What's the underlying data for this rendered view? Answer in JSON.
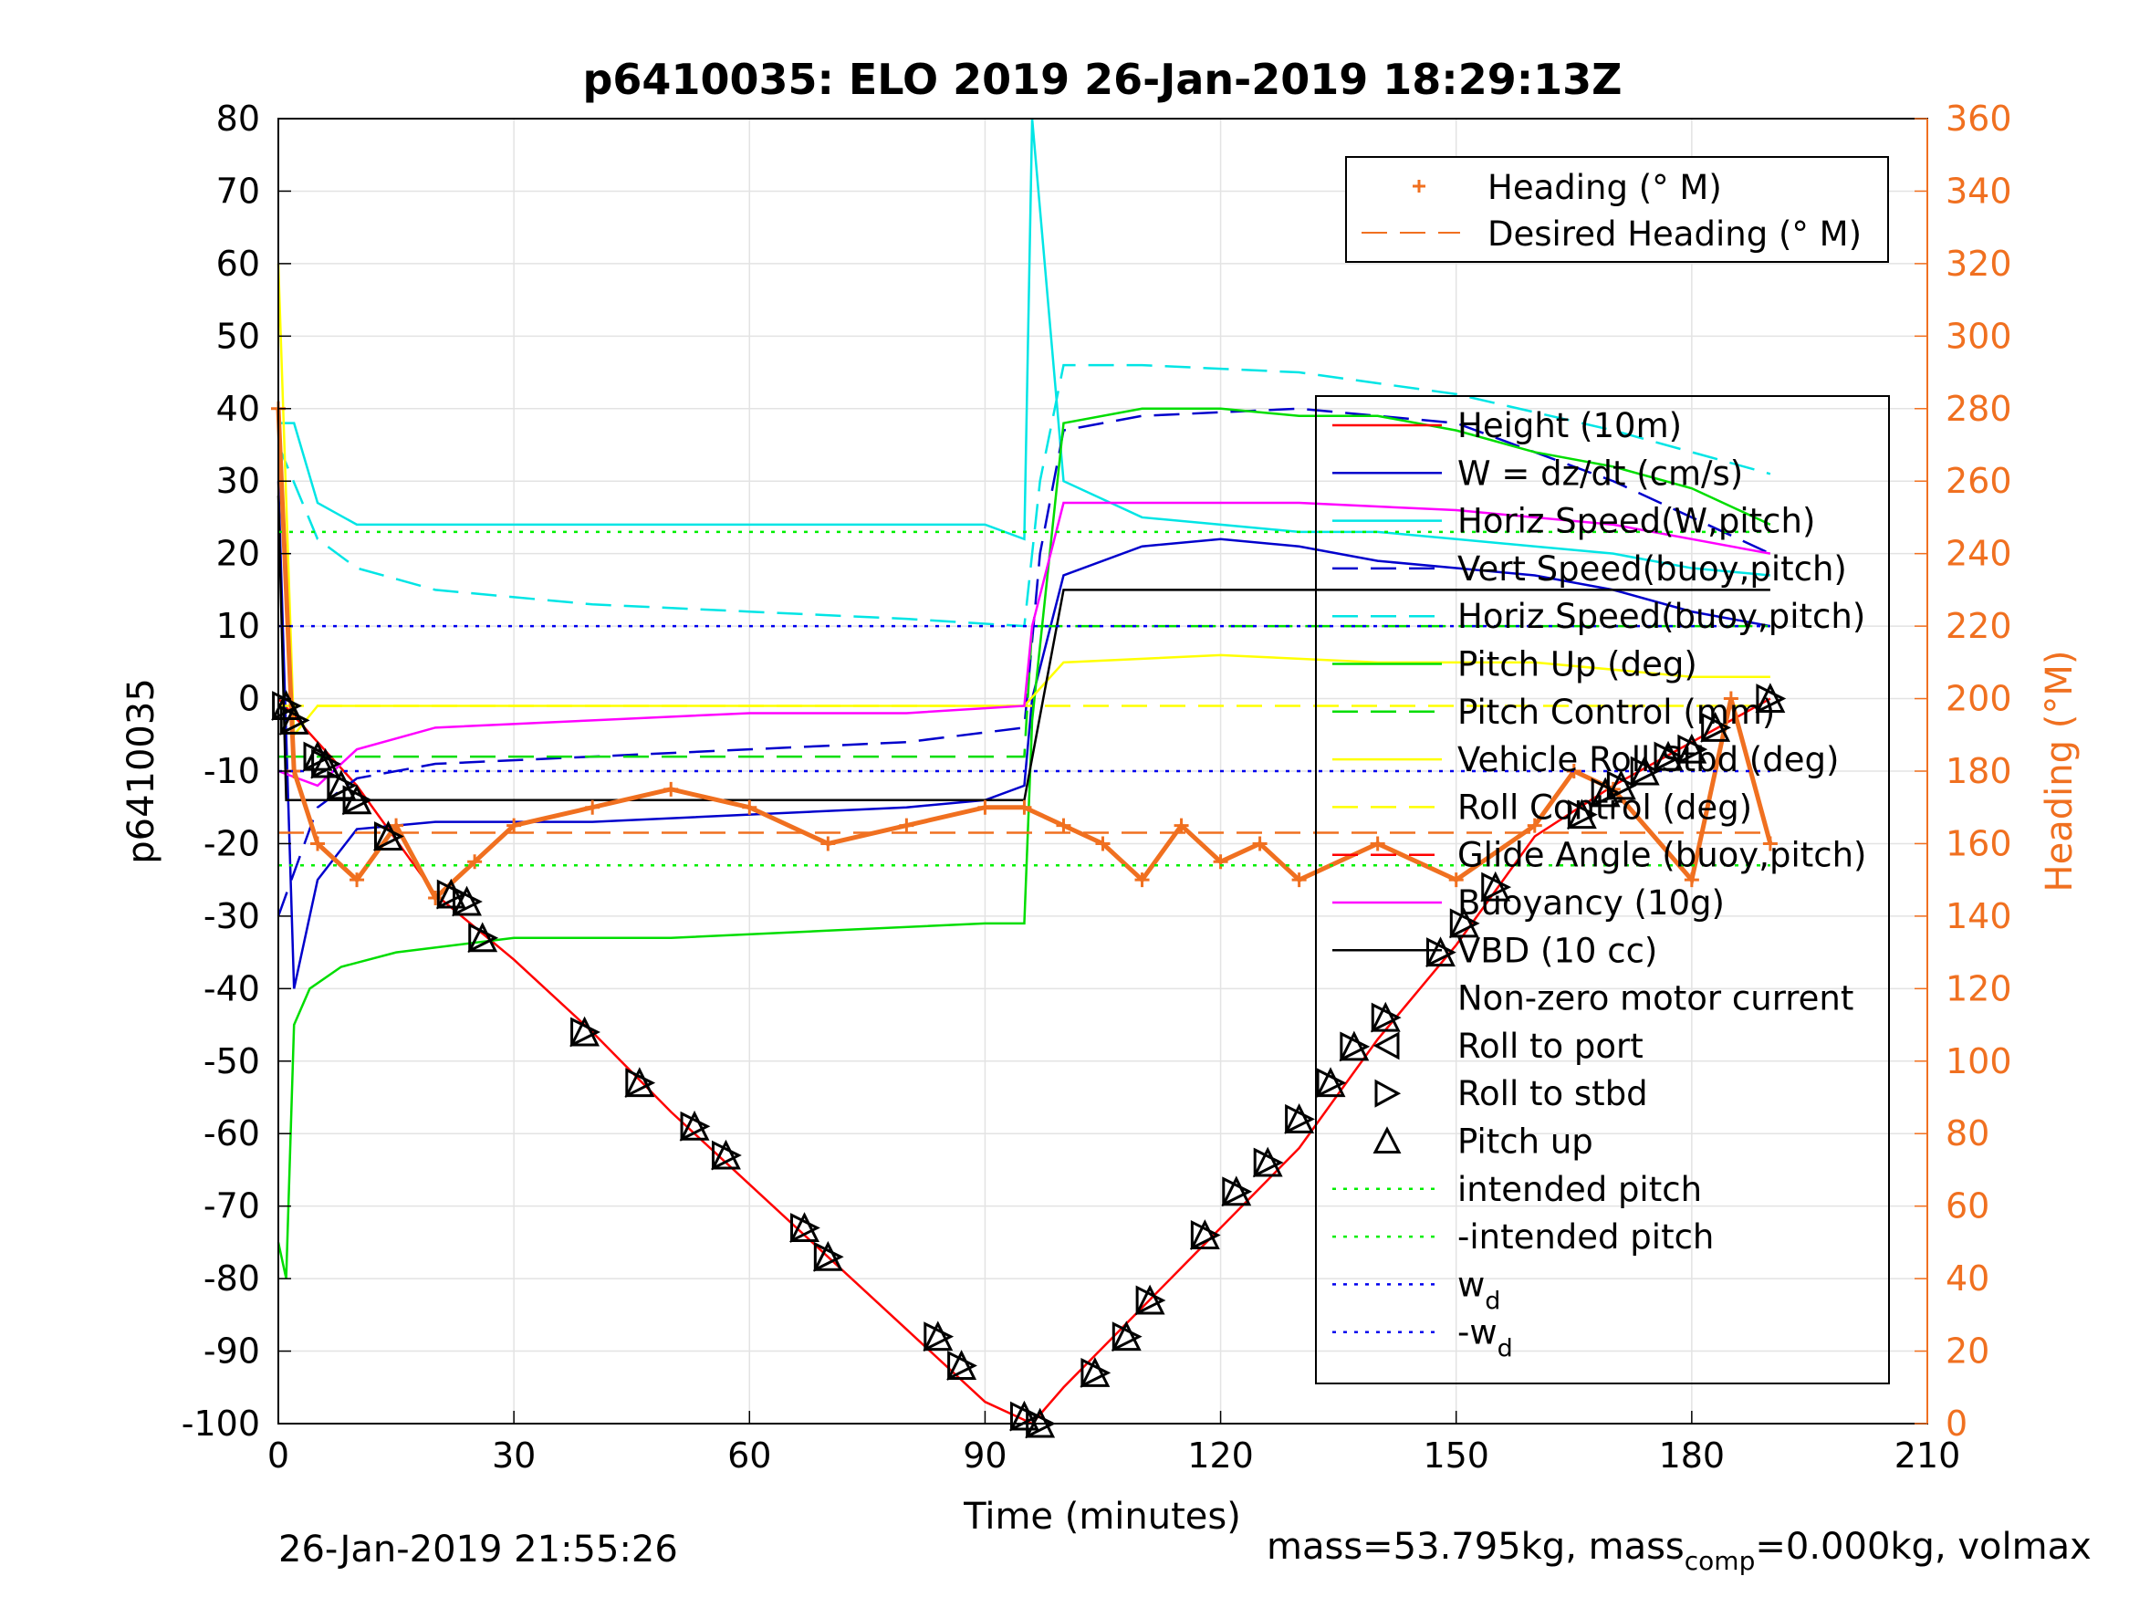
{
  "chart_data": {
    "type": "line",
    "title": "p6410035: ELO 2019 26-Jan-2019 18:29:13Z",
    "xlabel": "Time (minutes)",
    "ylabel": "p6410035",
    "y2label": "Heading (°M)",
    "xlim": [
      0,
      210
    ],
    "ylim": [
      -100,
      80
    ],
    "y2lim": [
      0,
      360
    ],
    "xticks": [
      "0",
      "30",
      "60",
      "90",
      "120",
      "150",
      "180",
      "210"
    ],
    "yticks": [
      "80",
      "70",
      "60",
      "50",
      "40",
      "30",
      "20",
      "10",
      "0",
      "-10",
      "-20",
      "-30",
      "-40",
      "-50",
      "-60",
      "-70",
      "-80",
      "-90",
      "-100"
    ],
    "y2ticks": [
      "360",
      "340",
      "320",
      "300",
      "280",
      "260",
      "240",
      "220",
      "200",
      "180",
      "160",
      "140",
      "120",
      "100",
      "80",
      "60",
      "40",
      "20",
      "0"
    ],
    "grid": true,
    "colors": {
      "axis2": "#f07020",
      "heading": "#f07020"
    },
    "legend_heading": {
      "placement": "top-right",
      "entries": [
        "Heading (° M)",
        "Desired Heading (° M)"
      ]
    },
    "legend_main": {
      "placement": "right",
      "entries": [
        {
          "label": "Height (10m)",
          "color": "#ff0000",
          "style": "solid"
        },
        {
          "label": "W = dz/dt (cm/s)",
          "color": "#0000cc",
          "style": "solid"
        },
        {
          "label": "Horiz Speed(W,pitch)",
          "color": "#00e5e5",
          "style": "solid"
        },
        {
          "label": "Vert Speed(buoy,pitch)",
          "color": "#0000cc",
          "style": "dashed"
        },
        {
          "label": "Horiz Speed(buoy,pitch)",
          "color": "#00e5e5",
          "style": "dashed"
        },
        {
          "label": "Pitch Up (deg)",
          "color": "#00dd00",
          "style": "solid"
        },
        {
          "label": "Pitch Control (mm)",
          "color": "#00dd00",
          "style": "dashed"
        },
        {
          "label": "Vehicle Roll Stbd (deg)",
          "color": "#ffff00",
          "style": "solid"
        },
        {
          "label": "Roll Control (deg)",
          "color": "#ffff00",
          "style": "dashed"
        },
        {
          "label": "Glide Angle (buoy,pitch)",
          "color": "#ff0000",
          "style": "dashed"
        },
        {
          "label": "Buoyancy (10g)",
          "color": "#ff00ff",
          "style": "solid"
        },
        {
          "label": "VBD (10 cc)",
          "color": "#000000",
          "style": "solid"
        },
        {
          "label": "Non-zero motor current",
          "color": "#000000",
          "style": "none"
        },
        {
          "label": "Roll to port",
          "color": "#000000",
          "style": "marker-left"
        },
        {
          "label": "Roll to stbd",
          "color": "#000000",
          "style": "marker-right"
        },
        {
          "label": "Pitch up",
          "color": "#000000",
          "style": "marker-up"
        },
        {
          "label": "intended pitch",
          "color": "#00ee00",
          "style": "dotted"
        },
        {
          "label": "-intended pitch",
          "color": "#00ee00",
          "style": "dotted"
        },
        {
          "label": "w",
          "sub": "d",
          "color": "#0000ee",
          "style": "dotted"
        },
        {
          "label": "-w",
          "sub": "d",
          "color": "#0000ee",
          "style": "dotted"
        }
      ]
    },
    "series": [
      {
        "name": "Height (10m)",
        "x": [
          0,
          10,
          20,
          30,
          40,
          50,
          60,
          70,
          80,
          90,
          96,
          100,
          110,
          120,
          130,
          140,
          150,
          160,
          170,
          180,
          190
        ],
        "y": [
          0,
          -12,
          -27,
          -36,
          -46,
          -57,
          -67,
          -77,
          -87,
          -97,
          -100,
          -95,
          -84,
          -73,
          -62,
          -47,
          -34,
          -19,
          -12,
          -6,
          0
        ]
      },
      {
        "name": "W = dz/dt (cm/s)",
        "x": [
          0,
          2,
          5,
          10,
          20,
          40,
          60,
          80,
          90,
          95,
          96,
          100,
          110,
          120,
          130,
          140,
          150,
          160,
          170,
          180,
          190
        ],
        "y": [
          30,
          -40,
          -25,
          -18,
          -17,
          -17,
          -16,
          -15,
          -14,
          -12,
          0,
          17,
          21,
          22,
          21,
          19,
          18,
          17,
          15,
          12,
          10
        ]
      },
      {
        "name": "Horiz Speed(W,pitch)",
        "x": [
          0,
          2,
          5,
          10,
          20,
          40,
          60,
          80,
          90,
          95,
          96,
          100,
          110,
          120,
          130,
          140,
          150,
          160,
          170,
          180,
          190
        ],
        "y": [
          38,
          38,
          27,
          24,
          24,
          24,
          24,
          24,
          24,
          22,
          80,
          30,
          25,
          24,
          23,
          23,
          22,
          21,
          20,
          18,
          17
        ]
      },
      {
        "name": "Vert Speed(buoy,pitch)",
        "x": [
          0,
          5,
          10,
          20,
          40,
          60,
          80,
          95,
          97,
          100,
          110,
          130,
          150,
          170,
          190
        ],
        "y": [
          -30,
          -15,
          -11,
          -9,
          -8,
          -7,
          -6,
          -4,
          20,
          37,
          39,
          40,
          38,
          30,
          20
        ]
      },
      {
        "name": "Horiz Speed(buoy,pitch)",
        "x": [
          0,
          5,
          10,
          20,
          40,
          60,
          80,
          95,
          97,
          100,
          110,
          130,
          150,
          170,
          190
        ],
        "y": [
          35,
          22,
          18,
          15,
          13,
          12,
          11,
          10,
          30,
          46,
          46,
          45,
          42,
          37,
          31
        ]
      },
      {
        "name": "Pitch Up (deg)",
        "x": [
          0,
          1,
          2,
          4,
          8,
          15,
          30,
          50,
          70,
          90,
          95,
          96,
          100,
          110,
          120,
          130,
          140,
          150,
          160,
          170,
          180,
          190
        ],
        "y": [
          -75,
          -80,
          -45,
          -40,
          -37,
          -35,
          -33,
          -33,
          -32,
          -31,
          -31,
          -3,
          38,
          40,
          40,
          39,
          39,
          37,
          34,
          32,
          29,
          24
        ]
      },
      {
        "name": "Pitch Control (mm)",
        "x": [
          0,
          95,
          96,
          190
        ],
        "y": [
          -8,
          -8,
          10,
          10
        ]
      },
      {
        "name": "Vehicle Roll Stbd (deg)",
        "x": [
          0,
          2,
          5,
          10,
          20,
          40,
          60,
          80,
          95,
          100,
          120,
          140,
          160,
          180,
          190
        ],
        "y": [
          60,
          -5,
          -1,
          -1,
          -1,
          -1,
          -1,
          -1,
          -1,
          5,
          6,
          5,
          5,
          3,
          3
        ]
      },
      {
        "name": "Roll Control (deg)",
        "x": [
          0,
          190
        ],
        "y": [
          -1,
          -1
        ]
      },
      {
        "name": "Buoyancy (10g)",
        "x": [
          0,
          5,
          10,
          20,
          40,
          60,
          80,
          95,
          96,
          100,
          110,
          130,
          150,
          170,
          190
        ],
        "y": [
          -10,
          -12,
          -7,
          -4,
          -3,
          -2,
          -2,
          -1,
          10,
          27,
          27,
          27,
          26,
          24,
          20
        ]
      },
      {
        "name": "VBD (10 cc)",
        "x": [
          0,
          1,
          5,
          10,
          40,
          95,
          100,
          190
        ],
        "y": [
          28,
          -14,
          -14,
          -14,
          -14,
          -14,
          15,
          15
        ]
      },
      {
        "name": "Heading (° M)",
        "axis": "y2",
        "x": [
          0,
          2,
          5,
          10,
          15,
          20,
          25,
          30,
          40,
          50,
          60,
          70,
          80,
          90,
          95,
          100,
          105,
          110,
          115,
          120,
          125,
          130,
          140,
          150,
          160,
          165,
          170,
          180,
          185,
          190
        ],
        "y": [
          280,
          180,
          160,
          150,
          165,
          145,
          155,
          165,
          170,
          175,
          170,
          160,
          165,
          170,
          170,
          165,
          160,
          150,
          165,
          155,
          160,
          150,
          160,
          150,
          165,
          180,
          175,
          150,
          200,
          160
        ]
      },
      {
        "name": "Desired Heading (° M)",
        "axis": "y2",
        "x": [
          0,
          190
        ],
        "y": [
          163,
          163
        ]
      },
      {
        "name": "intended pitch",
        "x": [
          0,
          190
        ],
        "y": [
          23,
          23
        ]
      },
      {
        "name": "-intended pitch",
        "x": [
          0,
          190
        ],
        "y": [
          -23,
          -23
        ]
      },
      {
        "name": "w_d",
        "x": [
          0,
          190
        ],
        "y": [
          10,
          10
        ]
      },
      {
        "name": "-w_d",
        "x": [
          0,
          190
        ],
        "y": [
          -10,
          -10
        ]
      },
      {
        "name": "Motor markers",
        "x": [
          1,
          2,
          5,
          6,
          8,
          10,
          14,
          22,
          24,
          26,
          39,
          46,
          53,
          57,
          67,
          70,
          84,
          87,
          95,
          97,
          104,
          108,
          111,
          118,
          122,
          126,
          130,
          134,
          137,
          141,
          148,
          151,
          155,
          166,
          169,
          171,
          174,
          177,
          180,
          183,
          190
        ],
        "y": [
          -1,
          -3,
          -8,
          -9,
          -12,
          -14,
          -19,
          -27,
          -28,
          -33,
          -46,
          -53,
          -59,
          -63,
          -73,
          -77,
          -88,
          -92,
          -99,
          -100,
          -93,
          -88,
          -83,
          -74,
          -68,
          -64,
          -58,
          -53,
          -48,
          -44,
          -35,
          -31,
          -26,
          -16,
          -13,
          -12,
          -10,
          -8,
          -7,
          -4,
          0
        ]
      }
    ]
  },
  "footer": {
    "timestamp": "26-Jan-2019 21:55:26",
    "mass_text": "mass=53.795kg, mass",
    "mass_sub": "comp",
    "mass_rest": "=0.000kg, volmax"
  }
}
